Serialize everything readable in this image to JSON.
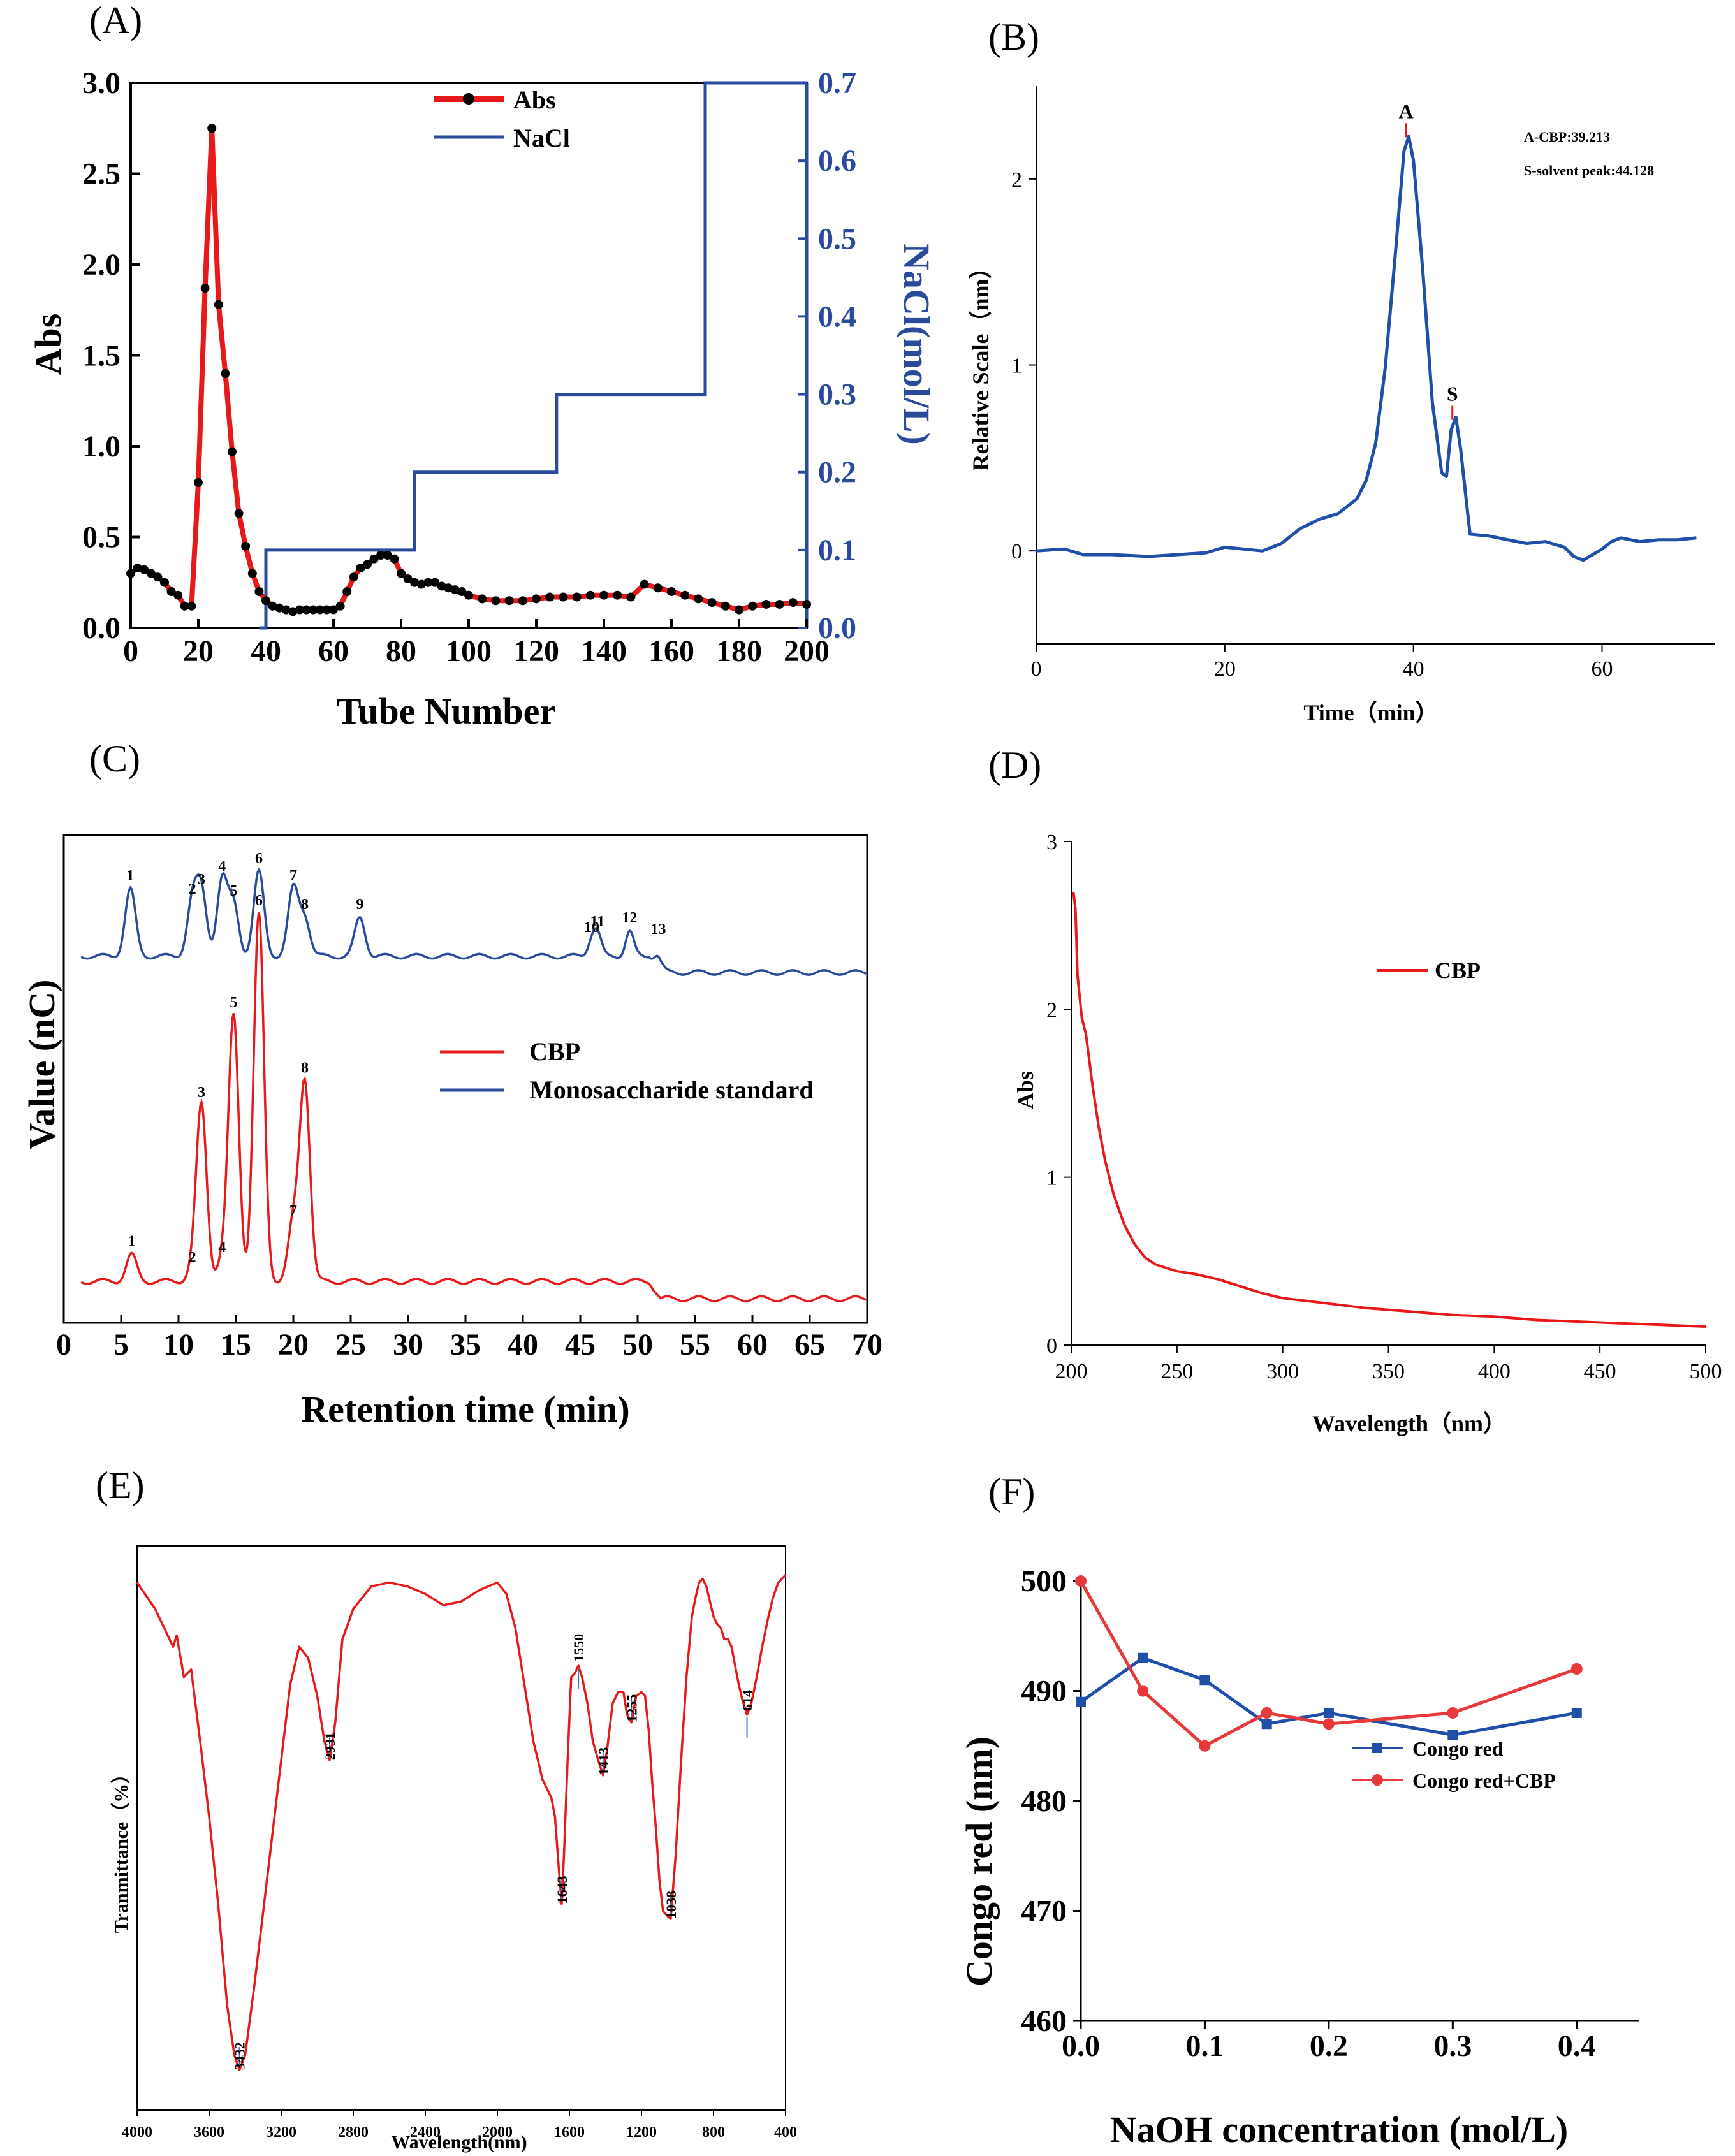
{
  "chart_data": [
    {
      "id": "A",
      "panel_label": "(A)",
      "type": "line",
      "xlabel": "Tube Number",
      "ylabel": "Abs",
      "y2label": "NaCl(mol/L)",
      "xlim": [
        0,
        200
      ],
      "ylim": [
        0,
        3.0
      ],
      "y2lim": [
        0,
        0.7
      ],
      "xticks": [
        "0",
        "20",
        "40",
        "60",
        "80",
        "100",
        "120",
        "140",
        "160",
        "180",
        "200"
      ],
      "yticks": [
        "0.0",
        "0.5",
        "1.0",
        "1.5",
        "2.0",
        "2.5",
        "3.0"
      ],
      "y2ticks": [
        "0.0",
        "0.1",
        "0.2",
        "0.3",
        "0.4",
        "0.5",
        "0.6",
        "0.7"
      ],
      "legend": [
        "Abs",
        "NaCl"
      ],
      "series": [
        {
          "name": "Abs",
          "color": "#e8191b",
          "x": [
            0,
            2,
            4,
            6,
            8,
            10,
            12,
            14,
            16,
            18,
            20,
            22,
            24,
            26,
            28,
            30,
            32,
            34,
            36,
            38,
            40,
            42,
            44,
            46,
            48,
            50,
            52,
            54,
            56,
            58,
            60,
            62,
            64,
            66,
            68,
            70,
            72,
            74,
            76,
            78,
            80,
            82,
            84,
            86,
            88,
            90,
            92,
            94,
            96,
            98,
            100,
            104,
            108,
            112,
            116,
            120,
            124,
            128,
            132,
            136,
            140,
            144,
            148,
            152,
            156,
            160,
            164,
            168,
            172,
            176,
            180,
            184,
            188,
            192,
            196,
            200
          ],
          "y": [
            0.3,
            0.33,
            0.32,
            0.3,
            0.28,
            0.25,
            0.2,
            0.18,
            0.12,
            0.12,
            0.8,
            1.87,
            2.75,
            1.78,
            1.4,
            0.97,
            0.63,
            0.45,
            0.3,
            0.2,
            0.15,
            0.12,
            0.11,
            0.1,
            0.09,
            0.1,
            0.1,
            0.1,
            0.1,
            0.1,
            0.1,
            0.12,
            0.2,
            0.28,
            0.33,
            0.35,
            0.38,
            0.4,
            0.4,
            0.38,
            0.3,
            0.27,
            0.25,
            0.24,
            0.25,
            0.25,
            0.23,
            0.22,
            0.21,
            0.2,
            0.18,
            0.16,
            0.15,
            0.15,
            0.15,
            0.16,
            0.17,
            0.17,
            0.17,
            0.18,
            0.18,
            0.18,
            0.17,
            0.24,
            0.22,
            0.2,
            0.18,
            0.16,
            0.14,
            0.12,
            0.1,
            0.12,
            0.13,
            0.13,
            0.14,
            0.13
          ]
        },
        {
          "name": "NaCl",
          "color": "#2a4b9b",
          "x": [
            38,
            40,
            40,
            84,
            84,
            126,
            126,
            170,
            170,
            200
          ],
          "y": [
            0,
            0,
            0.1,
            0.1,
            0.2,
            0.2,
            0.3,
            0.3,
            0.7,
            0.7
          ]
        }
      ]
    },
    {
      "id": "B",
      "panel_label": "(B)",
      "type": "line",
      "xlabel": "Time（min）",
      "ylabel": "Relative Scale（nm）",
      "xlim": [
        0,
        72
      ],
      "ylim": [
        -0.5,
        2.5
      ],
      "xticks": [
        "0",
        "20",
        "40",
        "60"
      ],
      "yticks": [
        "0",
        "1",
        "2"
      ],
      "annotations": [
        "A-CBP:39.213",
        "S-solvent peak:44.128"
      ],
      "peak_labels": [
        {
          "label": "A",
          "x": 39.213,
          "y": 2.3
        },
        {
          "label": "S",
          "x": 44.128,
          "y": 0.78
        }
      ],
      "series": [
        {
          "name": "CBP",
          "color": "#1f4fa8",
          "x": [
            0,
            3,
            5,
            8,
            12,
            15,
            18,
            20,
            22,
            24,
            26,
            28,
            30,
            32,
            34,
            35,
            36,
            37,
            38,
            39,
            39.5,
            40,
            41,
            42,
            43,
            43.5,
            44,
            44.5,
            45,
            46,
            48,
            50,
            52,
            54,
            56,
            57,
            58,
            59,
            60,
            61,
            62,
            64,
            66,
            68,
            70
          ],
          "y": [
            0,
            0.01,
            -0.02,
            -0.02,
            -0.03,
            -0.02,
            -0.01,
            0.02,
            0.01,
            0.0,
            0.04,
            0.12,
            0.17,
            0.2,
            0.28,
            0.38,
            0.58,
            0.98,
            1.55,
            2.15,
            2.23,
            2.1,
            1.5,
            0.8,
            0.42,
            0.4,
            0.65,
            0.72,
            0.55,
            0.09,
            0.08,
            0.06,
            0.04,
            0.05,
            0.02,
            -0.03,
            -0.05,
            -0.02,
            0.01,
            0.05,
            0.07,
            0.05,
            0.06,
            0.06,
            0.07
          ]
        }
      ]
    },
    {
      "id": "C",
      "panel_label": "(C)",
      "type": "line",
      "xlabel": "Retention time (min)",
      "ylabel": "Value (nC)",
      "xlim": [
        0,
        70
      ],
      "xticks": [
        "0",
        "5",
        "10",
        "15",
        "20",
        "25",
        "30",
        "35",
        "40",
        "45",
        "50",
        "55",
        "60",
        "65",
        "70"
      ],
      "legend": [
        "CBP",
        "Monosaccharide standard"
      ],
      "peaks_standard": [
        {
          "label": "1",
          "x": 5.8,
          "h": 0.35
        },
        {
          "label": "2",
          "x": 11.2,
          "h": 0.28
        },
        {
          "label": "3",
          "x": 12.0,
          "h": 0.33
        },
        {
          "label": "4",
          "x": 13.8,
          "h": 0.4
        },
        {
          "label": "5",
          "x": 14.8,
          "h": 0.27
        },
        {
          "label": "6",
          "x": 17.0,
          "h": 0.44
        },
        {
          "label": "7",
          "x": 20.0,
          "h": 0.35
        },
        {
          "label": "8",
          "x": 21.0,
          "h": 0.2
        },
        {
          "label": "9",
          "x": 25.8,
          "h": 0.2
        },
        {
          "label": "10",
          "x": 46.0,
          "h": 0.08
        },
        {
          "label": "11",
          "x": 46.5,
          "h": 0.11
        },
        {
          "label": "12",
          "x": 49.3,
          "h": 0.13
        },
        {
          "label": "13",
          "x": 51.8,
          "h": 0.07
        }
      ],
      "peaks_cbp": [
        {
          "label": "1",
          "x": 5.9,
          "h": 0.13
        },
        {
          "label": "2",
          "x": 11.2,
          "h": 0.05
        },
        {
          "label": "3",
          "x": 12.0,
          "h": 0.86
        },
        {
          "label": "4",
          "x": 13.8,
          "h": 0.1
        },
        {
          "label": "5",
          "x": 14.8,
          "h": 1.3
        },
        {
          "label": "6",
          "x": 17.0,
          "h": 1.8
        },
        {
          "label": "7",
          "x": 20.0,
          "h": 0.28
        },
        {
          "label": "8",
          "x": 21.0,
          "h": 0.98
        }
      ],
      "series": [
        {
          "name": "CBP",
          "color": "#e8191b"
        },
        {
          "name": "Monosaccharide standard",
          "color": "#2a4b9b"
        }
      ]
    },
    {
      "id": "D",
      "panel_label": "(D)",
      "type": "line",
      "xlabel": "Wavelength（nm）",
      "ylabel": "Abs",
      "xlim": [
        200,
        500
      ],
      "ylim": [
        0,
        3
      ],
      "xticks": [
        "200",
        "250",
        "300",
        "350",
        "400",
        "450",
        "500"
      ],
      "yticks": [
        "0",
        "1",
        "2",
        "3"
      ],
      "legend": [
        "CBP"
      ],
      "series": [
        {
          "name": "CBP",
          "color": "#e8191b",
          "x": [
            201,
            202,
            203,
            205,
            207,
            210,
            213,
            216,
            220,
            225,
            230,
            235,
            240,
            250,
            260,
            270,
            280,
            290,
            300,
            320,
            340,
            360,
            380,
            400,
            420,
            440,
            460,
            480,
            500
          ],
          "y": [
            2.7,
            2.6,
            2.2,
            1.95,
            1.85,
            1.55,
            1.3,
            1.1,
            0.9,
            0.72,
            0.6,
            0.52,
            0.48,
            0.44,
            0.42,
            0.39,
            0.35,
            0.31,
            0.28,
            0.25,
            0.22,
            0.2,
            0.18,
            0.17,
            0.15,
            0.14,
            0.13,
            0.12,
            0.11
          ]
        }
      ]
    },
    {
      "id": "E",
      "panel_label": "(E)",
      "type": "line",
      "xlabel": "Wavelength(nm)",
      "ylabel": "Tranmittance（%）",
      "xlim": [
        4000,
        400
      ],
      "xticks": [
        "4000",
        "3600",
        "3200",
        "2800",
        "2400",
        "2000",
        "1600",
        "1200",
        "800",
        "400"
      ],
      "peak_labels": [
        {
          "label": "3432",
          "x": 3432,
          "side": "down"
        },
        {
          "label": "2931",
          "x": 2931,
          "side": "down"
        },
        {
          "label": "1643",
          "x": 1643,
          "side": "down"
        },
        {
          "label": "1550",
          "x": 1550,
          "side": "up"
        },
        {
          "label": "1413",
          "x": 1413,
          "side": "down"
        },
        {
          "label": "1255",
          "x": 1255,
          "side": "down"
        },
        {
          "label": "1038",
          "x": 1038,
          "side": "down"
        },
        {
          "label": "614",
          "x": 614,
          "side": "up"
        }
      ],
      "series": [
        {
          "name": "CBP",
          "color": "#e8191b",
          "x": [
            4000,
            3900,
            3800,
            3780,
            3740,
            3700,
            3650,
            3600,
            3550,
            3500,
            3460,
            3432,
            3400,
            3350,
            3300,
            3250,
            3200,
            3150,
            3100,
            3050,
            3000,
            2960,
            2931,
            2900,
            2860,
            2800,
            2700,
            2600,
            2500,
            2400,
            2300,
            2200,
            2100,
            2000,
            1950,
            1900,
            1850,
            1800,
            1750,
            1700,
            1680,
            1660,
            1643,
            1630,
            1610,
            1590,
            1570,
            1550,
            1530,
            1500,
            1470,
            1440,
            1413,
            1390,
            1360,
            1330,
            1300,
            1280,
            1255,
            1230,
            1200,
            1180,
            1160,
            1140,
            1120,
            1100,
            1080,
            1060,
            1038,
            1010,
            980,
            950,
            920,
            900,
            880,
            860,
            840,
            820,
            800,
            780,
            760,
            740,
            720,
            700,
            680,
            660,
            640,
            614,
            590,
            560,
            530,
            500,
            470,
            440,
            400
          ],
          "y": [
            0.97,
            0.9,
            0.8,
            0.83,
            0.72,
            0.74,
            0.55,
            0.35,
            0.12,
            -0.15,
            -0.28,
            -0.32,
            -0.28,
            -0.1,
            0.1,
            0.3,
            0.5,
            0.7,
            0.8,
            0.77,
            0.67,
            0.55,
            0.5,
            0.6,
            0.82,
            0.9,
            0.96,
            0.97,
            0.96,
            0.94,
            0.91,
            0.92,
            0.95,
            0.97,
            0.94,
            0.85,
            0.7,
            0.55,
            0.45,
            0.4,
            0.35,
            0.22,
            0.12,
            0.25,
            0.5,
            0.72,
            0.73,
            0.75,
            0.72,
            0.65,
            0.55,
            0.5,
            0.46,
            0.53,
            0.65,
            0.68,
            0.68,
            0.62,
            0.6,
            0.67,
            0.68,
            0.67,
            0.58,
            0.44,
            0.32,
            0.18,
            0.1,
            0.09,
            0.08,
            0.25,
            0.5,
            0.72,
            0.88,
            0.93,
            0.97,
            0.98,
            0.96,
            0.92,
            0.88,
            0.86,
            0.85,
            0.82,
            0.82,
            0.8,
            0.75,
            0.7,
            0.66,
            0.62,
            0.65,
            0.72,
            0.8,
            0.87,
            0.93,
            0.97,
            0.99
          ]
        }
      ]
    },
    {
      "id": "F",
      "panel_label": "(F)",
      "type": "line",
      "xlabel": "NaOH concentration (mol/L)",
      "ylabel": "Congo red (nm)",
      "xlim": [
        0,
        0.45
      ],
      "ylim": [
        460,
        500
      ],
      "xticks": [
        "0.0",
        "0.1",
        "0.2",
        "0.3",
        "0.4"
      ],
      "yticks": [
        "460",
        "470",
        "480",
        "490",
        "500"
      ],
      "legend": [
        "Congo red",
        "Congo red+CBP"
      ],
      "series": [
        {
          "name": "Congo red",
          "color": "#1f4fa8",
          "marker": "square",
          "x": [
            0,
            0.05,
            0.1,
            0.15,
            0.2,
            0.3,
            0.4
          ],
          "y": [
            489,
            493,
            491,
            487,
            488,
            486,
            488
          ]
        },
        {
          "name": "Congo red+CBP",
          "color": "#e8393a",
          "marker": "circle",
          "x": [
            0,
            0.05,
            0.1,
            0.15,
            0.2,
            0.3,
            0.4
          ],
          "y": [
            500,
            490,
            485,
            488,
            487,
            488,
            492
          ]
        }
      ]
    }
  ]
}
